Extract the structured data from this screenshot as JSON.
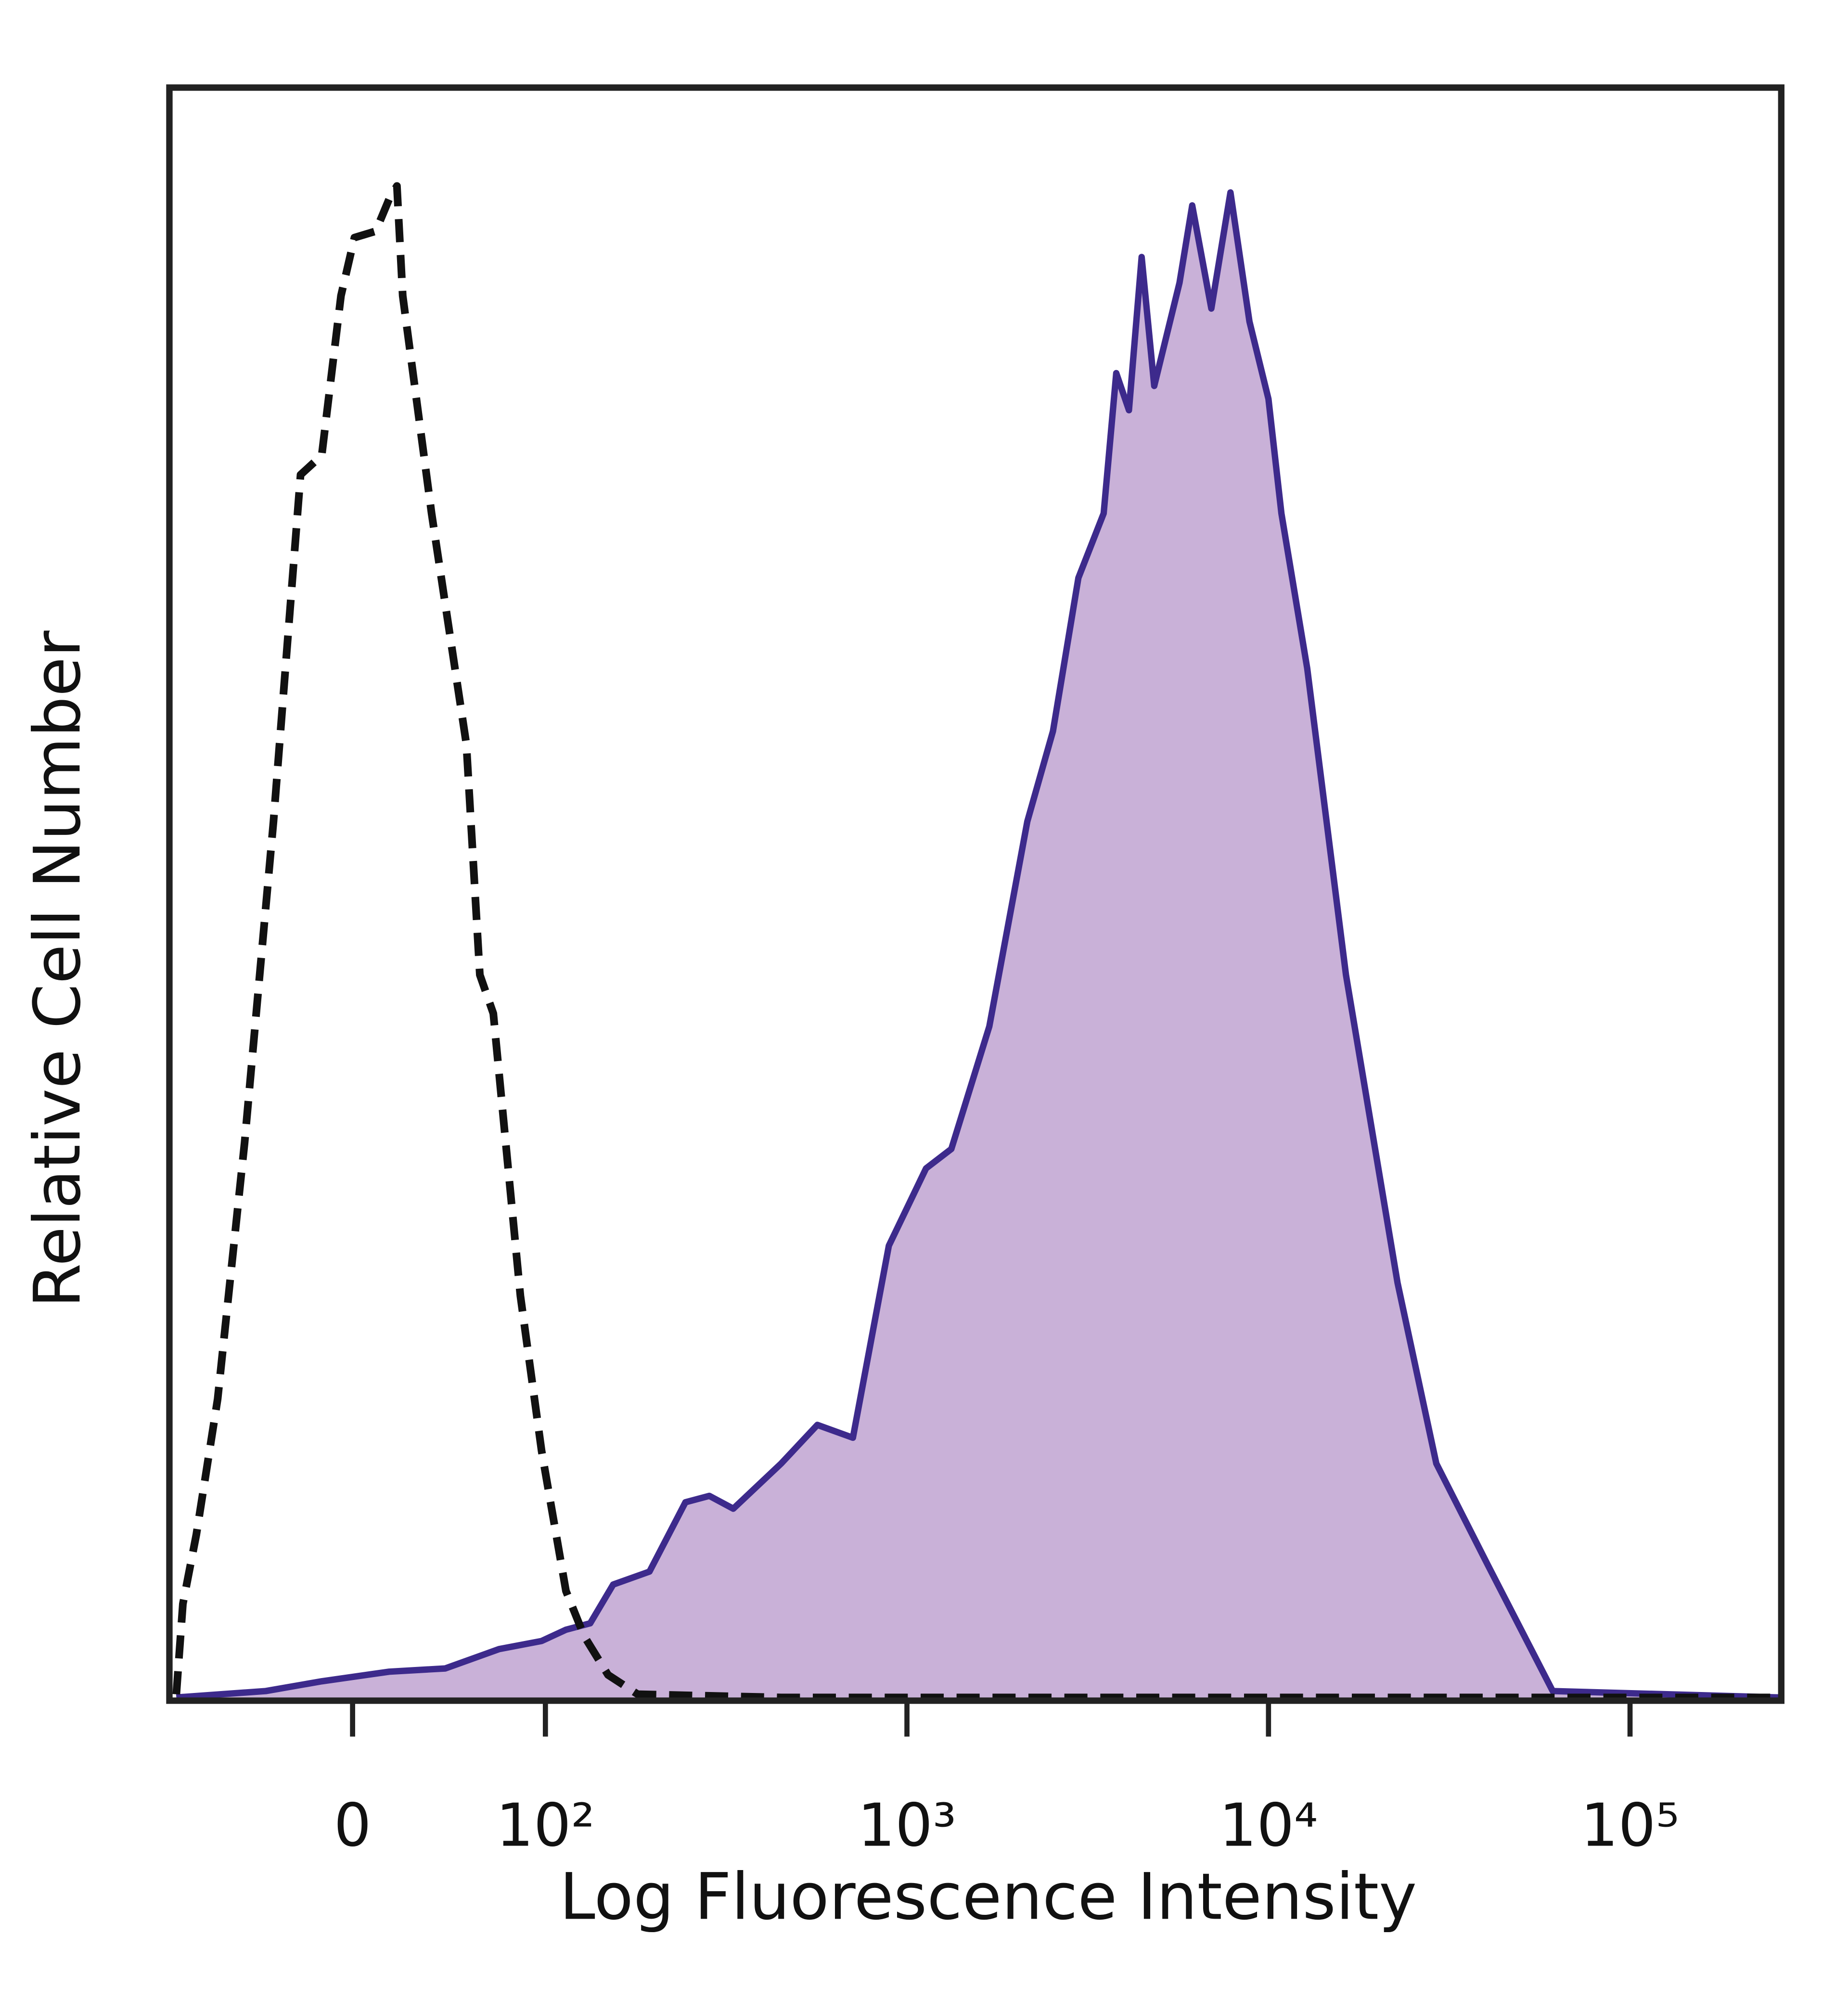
{
  "chart_data": {
    "type": "area",
    "x_label": "Log Fluorescence Intensity",
    "y_label": "Relative Cell Number",
    "xscale": "biexponential",
    "xlim": [
      -95,
      262000
    ],
    "xticks": [
      0,
      {
        "value": 100,
        "label": "10²"
      },
      {
        "value": 1000,
        "label": "10³"
      },
      {
        "value": 10000,
        "label": "10⁴"
      },
      {
        "value": 100000,
        "label": "10⁵"
      }
    ],
    "ylim": [
      0,
      100
    ],
    "series": [
      {
        "color": "#3d2a8c",
        "fill": "#c9b1d8",
        "dashed": false,
        "x": [
          -91.4,
          -45,
          -16,
          19,
          48,
          76,
          98,
          114,
          133,
          154,
          194,
          244,
          284,
          331,
          449,
          565,
          709,
          891,
          1129,
          1327,
          1690,
          2153,
          2535,
          2979,
          3499,
          3793,
          4111,
          4457,
          4831,
          5675,
          6152,
          6950,
          7852,
          8855,
          10000,
          10855,
          12794,
          16379,
          22750,
          29107,
          40457,
          61094,
          260000
        ],
        "values": [
          0.2,
          0.6,
          1.2,
          1.8,
          2,
          3.2,
          3.7,
          4.4,
          4.8,
          7.2,
          8,
          12.3,
          12.7,
          11.9,
          14.7,
          17.1,
          16.3,
          28.2,
          33,
          34.2,
          41.8,
          54.5,
          60.1,
          69.6,
          73.6,
          82.3,
          80,
          89.5,
          81.5,
          87.9,
          92.7,
          86.3,
          93.5,
          85.5,
          80.7,
          73.6,
          64,
          45,
          25.9,
          14.7,
          8.4,
          0.6,
          0.2
        ]
      },
      {
        "color": "#111111",
        "fill": null,
        "dashed": true,
        "x": [
          -91.4,
          -88,
          -81,
          -70,
          -56,
          -41,
          -27,
          -16,
          -6,
          1,
          12,
          19,
          23,
          26,
          41,
          59,
          66,
          73,
          87,
          98,
          114,
          128,
          149,
          180,
          449,
          260000
        ],
        "values": [
          0.4,
          6,
          10.3,
          18.7,
          34.6,
          54.5,
          76,
          77.2,
          87.1,
          90.7,
          91.1,
          93.1,
          93.9,
          87.1,
          73.6,
          59.3,
          45,
          42.6,
          25.1,
          15.5,
          6.8,
          4,
          1.6,
          0.4,
          0.2,
          0.2
        ]
      }
    ]
  }
}
